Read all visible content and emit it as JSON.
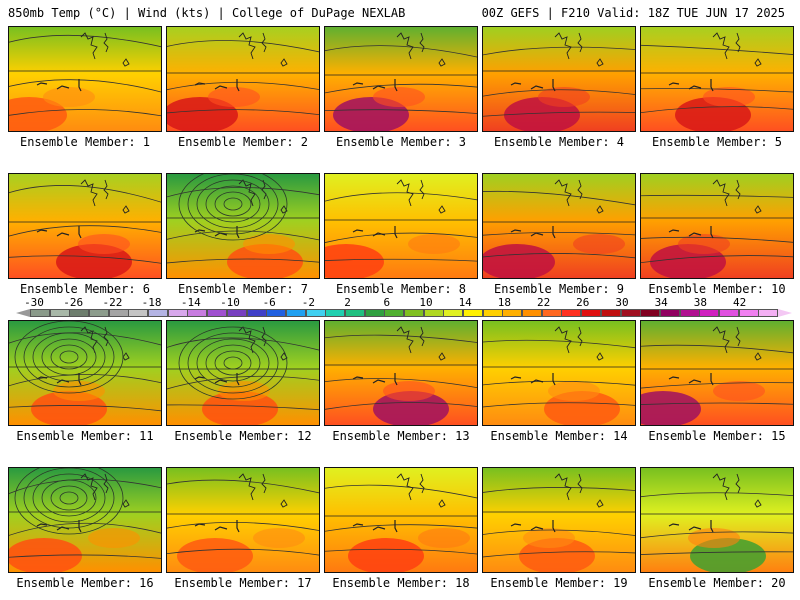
{
  "header": {
    "left_title": "850mb Temp (°C) | Wind (kts) | College of DuPage NEXLAB",
    "right_title": "00Z GEFS | F210 Valid: 18Z TUE JUN 17 2025"
  },
  "panels": [
    {
      "label": "Ensemble Member: 1",
      "palette": "warm-green-north"
    },
    {
      "label": "Ensemble Member: 2",
      "palette": "warm-hot-sw"
    },
    {
      "label": "Ensemble Member: 3",
      "palette": "hot-sw-purple"
    },
    {
      "label": "Ensemble Member: 4",
      "palette": "hot-south"
    },
    {
      "label": "Ensemble Member: 5",
      "palette": "warm-hot-sw"
    },
    {
      "label": "Ensemble Member: 6",
      "palette": "warm-hot-sw"
    },
    {
      "label": "Ensemble Member: 7",
      "palette": "cool-low"
    },
    {
      "label": "Ensemble Member: 8",
      "palette": "warm"
    },
    {
      "label": "Ensemble Member: 9",
      "palette": "hot-south"
    },
    {
      "label": "Ensemble Member: 10",
      "palette": "hot-south"
    },
    {
      "label": "Ensemble Member: 11",
      "palette": "cool-low"
    },
    {
      "label": "Ensemble Member: 12",
      "palette": "cool-low"
    },
    {
      "label": "Ensemble Member: 13",
      "palette": "hot-sw-purple"
    },
    {
      "label": "Ensemble Member: 14",
      "palette": "warm-green-north"
    },
    {
      "label": "Ensemble Member: 15",
      "palette": "hot-sw-purple"
    },
    {
      "label": "Ensemble Member: 16",
      "palette": "cool-low"
    },
    {
      "label": "Ensemble Member: 17",
      "palette": "warm-green-north"
    },
    {
      "label": "Ensemble Member: 18",
      "palette": "warm"
    },
    {
      "label": "Ensemble Member: 19",
      "palette": "warm-green-north"
    },
    {
      "label": "Ensemble Member: 20",
      "palette": "green-east"
    }
  ],
  "colorbar": {
    "tick_labels": [
      "-30",
      "-26",
      "-22",
      "-18",
      "-14",
      "-10",
      "-6",
      "-2",
      "2",
      "6",
      "10",
      "14",
      "18",
      "22",
      "26",
      "30",
      "34",
      "38",
      "42"
    ],
    "colors": [
      "#8a9a8a",
      "#a8b8a8",
      "#6e7e6e",
      "#8c9c8c",
      "#a4a4a4",
      "#c4c4c4",
      "#b4b4e4",
      "#d8a8ec",
      "#c87ce0",
      "#a050d0",
      "#7840c0",
      "#4040c8",
      "#2060e0",
      "#20a0f0",
      "#40d0f0",
      "#20d0b0",
      "#20c080",
      "#30a040",
      "#50b030",
      "#80c020",
      "#b0d820",
      "#e0f020",
      "#fff000",
      "#ffd000",
      "#ffb000",
      "#ff9000",
      "#ff6820",
      "#ff3020",
      "#e01010",
      "#c01010",
      "#a01020",
      "#800020",
      "#900060",
      "#b01090",
      "#d020c0",
      "#e050e0",
      "#f080f0",
      "#f4b0f4"
    ]
  }
}
